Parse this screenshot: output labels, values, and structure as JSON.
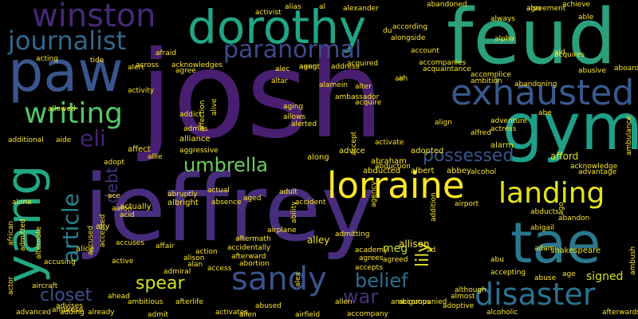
{
  "words": [
    {
      "text": "josh",
      "color": "#481f70"
    },
    {
      "text": "jeffrey",
      "color": "#472d7b"
    },
    {
      "text": "feud",
      "color": "#2ba07c"
    },
    {
      "text": "paw",
      "color": "#3a548c"
    },
    {
      "text": "gym",
      "color": "#1f9e89"
    },
    {
      "text": "dorothy",
      "color": "#21a685"
    },
    {
      "text": "winston",
      "color": "#482878"
    },
    {
      "text": "yang",
      "color": "#22a884"
    },
    {
      "text": "tae",
      "color": "#2a788e"
    },
    {
      "text": "lorraine",
      "color": "#fde725"
    },
    {
      "text": "exhausted",
      "color": "#38598c"
    },
    {
      "text": "landing",
      "color": "#e5e419"
    },
    {
      "text": "sandy",
      "color": "#3b528b"
    },
    {
      "text": "disaster",
      "color": "#2c718e"
    },
    {
      "text": "journalist",
      "color": "#31688e"
    },
    {
      "text": "writing",
      "color": "#54c568"
    },
    {
      "text": "paranormal",
      "color": "#3e4a89"
    },
    {
      "text": "umbrella",
      "color": "#6ccd5a"
    },
    {
      "text": "article",
      "color": "#26828e"
    },
    {
      "text": "eli",
      "color": "#482475"
    },
    {
      "text": "possessed",
      "color": "#39568c"
    },
    {
      "text": "belief",
      "color": "#2d708e"
    },
    {
      "text": "spear",
      "color": "#d2e21b"
    },
    {
      "text": "closet",
      "color": "#3b528b"
    },
    {
      "text": "war",
      "color": "#46317e"
    },
    {
      "text": "lily",
      "color": "#e2e418"
    },
    {
      "text": "meg",
      "color": "#c8e020"
    },
    {
      "text": "allison",
      "color": "#fde725"
    },
    {
      "text": "signed",
      "color": "#d8e219"
    },
    {
      "text": "shakespeare",
      "color": "#e7e419"
    },
    {
      "text": "afford",
      "color": "#e5e419"
    },
    {
      "text": "alarm",
      "color": "#ece51b"
    },
    {
      "text": "debt",
      "color": "#46337f"
    },
    {
      "text": "alley",
      "color": "#f1e51d"
    },
    {
      "text": "alice",
      "color": "#f4e61e"
    },
    {
      "text": "ally",
      "color": "#fde725"
    },
    {
      "text": "albright",
      "color": "#fde725"
    },
    {
      "text": "alliance",
      "color": "#fde725"
    },
    {
      "text": "affect",
      "color": "#fde725"
    },
    {
      "text": "actually",
      "color": "#fde725"
    },
    {
      "text": "adopted",
      "color": "#fde725"
    },
    {
      "text": "advice",
      "color": "#fde725"
    },
    {
      "text": "abraham",
      "color": "#fde725"
    },
    {
      "text": "abducted",
      "color": "#fde725"
    },
    {
      "text": "albert",
      "color": "#fde725"
    },
    {
      "text": "abbey",
      "color": "#fde725"
    },
    {
      "text": "along",
      "color": "#fde725"
    },
    {
      "text": "align",
      "color": "#fde725"
    },
    {
      "text": "alfred",
      "color": "#fde725"
    },
    {
      "text": "adventure",
      "color": "#fde725"
    },
    {
      "text": "actress",
      "color": "#fde725"
    },
    {
      "text": "abe",
      "color": "#fde725"
    },
    {
      "text": "abigail",
      "color": "#fde725"
    },
    {
      "text": "abandon",
      "color": "#fde725"
    },
    {
      "text": "accepting",
      "color": "#fde725"
    },
    {
      "text": "abuse",
      "color": "#fde725"
    },
    {
      "text": "age",
      "color": "#fde725"
    },
    {
      "text": "although",
      "color": "#fde725"
    },
    {
      "text": "accident",
      "color": "#fde725"
    },
    {
      "text": "admitting",
      "color": "#fde725"
    },
    {
      "text": "agreed",
      "color": "#fde725"
    },
    {
      "text": "academy",
      "color": "#fde725"
    },
    {
      "text": "agrees",
      "color": "#fde725"
    },
    {
      "text": "accompanied",
      "color": "#fde725"
    },
    {
      "text": "adoptive",
      "color": "#fde725"
    },
    {
      "text": "accepts",
      "color": "#fde725"
    },
    {
      "text": "almost",
      "color": "#fde725"
    },
    {
      "text": "alcoholic",
      "color": "#fde725"
    },
    {
      "text": "abused",
      "color": "#fde725"
    },
    {
      "text": "allen",
      "color": "#fde725"
    },
    {
      "text": "airfield",
      "color": "#fde725"
    },
    {
      "text": "admiral",
      "color": "#fde725"
    },
    {
      "text": "alan",
      "color": "#fde725"
    },
    {
      "text": "access",
      "color": "#fde725"
    },
    {
      "text": "aftermath",
      "color": "#fde725"
    },
    {
      "text": "accidentally",
      "color": "#fde725"
    },
    {
      "text": "afterward",
      "color": "#fde725"
    },
    {
      "text": "abortion",
      "color": "#fde725"
    },
    {
      "text": "affair",
      "color": "#fde725"
    },
    {
      "text": "action",
      "color": "#fde725"
    },
    {
      "text": "alison",
      "color": "#fde725"
    },
    {
      "text": "active",
      "color": "#fde725"
    },
    {
      "text": "advanced",
      "color": "#fde725"
    },
    {
      "text": "advises",
      "color": "#fde725"
    },
    {
      "text": "already",
      "color": "#fde725"
    },
    {
      "text": "ahead",
      "color": "#fde725"
    },
    {
      "text": "ambitious",
      "color": "#fde725"
    },
    {
      "text": "afterlife",
      "color": "#fde725"
    },
    {
      "text": "admit",
      "color": "#fde725"
    },
    {
      "text": "adding",
      "color": "#fde725"
    },
    {
      "text": "accusing",
      "color": "#fde725"
    },
    {
      "text": "admitted",
      "color": "#fde725"
    },
    {
      "text": "african",
      "color": "#fde725"
    },
    {
      "text": "alone",
      "color": "#fde725"
    },
    {
      "text": "additional",
      "color": "#fde725"
    },
    {
      "text": "acid",
      "color": "#fde725"
    },
    {
      "text": "aaron",
      "color": "#fde725"
    },
    {
      "text": "ace",
      "color": "#fde725"
    },
    {
      "text": "accuses",
      "color": "#fde725"
    },
    {
      "text": "abruptly",
      "color": "#fde725"
    },
    {
      "text": "absence",
      "color": "#fde725"
    },
    {
      "text": "aggressive",
      "color": "#fde725"
    },
    {
      "text": "admits",
      "color": "#fde725"
    },
    {
      "text": "addict",
      "color": "#fde725"
    },
    {
      "text": "allie",
      "color": "#fde725"
    },
    {
      "text": "adopt",
      "color": "#fde725"
    },
    {
      "text": "aide",
      "color": "#fde725"
    },
    {
      "text": "allowed",
      "color": "#fde725"
    },
    {
      "text": "alert",
      "color": "#fde725"
    },
    {
      "text": "acting",
      "color": "#fde725"
    },
    {
      "text": "tide",
      "color": "#fde725"
    },
    {
      "text": "afraid",
      "color": "#fde725"
    },
    {
      "text": "across",
      "color": "#fde725"
    },
    {
      "text": "acknowledges",
      "color": "#fde725"
    },
    {
      "text": "agree",
      "color": "#fde725"
    },
    {
      "text": "altar",
      "color": "#fde725"
    },
    {
      "text": "alec",
      "color": "#fde725"
    },
    {
      "text": "aang",
      "color": "#fde725"
    },
    {
      "text": "agent",
      "color": "#fde725"
    },
    {
      "text": "address",
      "color": "#fde725"
    },
    {
      "text": "acquired",
      "color": "#fde725"
    },
    {
      "text": "alamein",
      "color": "#fde725"
    },
    {
      "text": "alter",
      "color": "#fde725"
    },
    {
      "text": "ambassador",
      "color": "#fde725"
    },
    {
      "text": "acquire",
      "color": "#fde725"
    },
    {
      "text": "aging",
      "color": "#fde725"
    },
    {
      "text": "allows",
      "color": "#fde725"
    },
    {
      "text": "alerted",
      "color": "#fde725"
    },
    {
      "text": "alias",
      "color": "#fde725"
    },
    {
      "text": "al",
      "color": "#fde725"
    },
    {
      "text": "activist",
      "color": "#fde725"
    },
    {
      "text": "alexander",
      "color": "#fde725"
    },
    {
      "text": "du",
      "color": "#fde725"
    },
    {
      "text": "alongside",
      "color": "#fde725"
    },
    {
      "text": "according",
      "color": "#fde725"
    },
    {
      "text": "account",
      "color": "#fde725"
    },
    {
      "text": "accompanies",
      "color": "#fde725"
    },
    {
      "text": "acquaintance",
      "color": "#fde725"
    },
    {
      "text": "abandoned",
      "color": "#fde725"
    },
    {
      "text": "ambition",
      "color": "#fde725"
    },
    {
      "text": "accomplice",
      "color": "#fde725"
    },
    {
      "text": "alpha",
      "color": "#fde725"
    },
    {
      "text": "aid",
      "color": "#fde725"
    },
    {
      "text": "acquires",
      "color": "#fde725"
    },
    {
      "text": "also",
      "color": "#fde725"
    },
    {
      "text": "always",
      "color": "#fde725"
    },
    {
      "text": "agreement",
      "color": "#fde725"
    },
    {
      "text": "achieve",
      "color": "#fde725"
    },
    {
      "text": "able",
      "color": "#fde725"
    },
    {
      "text": "abusive",
      "color": "#fde725"
    },
    {
      "text": "aboard",
      "color": "#fde725"
    },
    {
      "text": "abandoning",
      "color": "#fde725"
    },
    {
      "text": "ambulance",
      "color": "#fde725"
    },
    {
      "text": "acknowledge",
      "color": "#fde725"
    },
    {
      "text": "advantage",
      "color": "#fde725"
    },
    {
      "text": "alcohol",
      "color": "#fde725"
    },
    {
      "text": "abducts",
      "color": "#fde725"
    },
    {
      "text": "ago",
      "color": "#fde725"
    },
    {
      "text": "adam",
      "color": "#fde725"
    },
    {
      "text": "abu",
      "color": "#fde725"
    },
    {
      "text": "ambush",
      "color": "#fde725"
    },
    {
      "text": "afterwards",
      "color": "#fde725"
    },
    {
      "text": "aircraft",
      "color": "#fde725"
    },
    {
      "text": "ambrose",
      "color": "#fde725"
    },
    {
      "text": "allen",
      "color": "#fde725"
    },
    {
      "text": "actor",
      "color": "#fde725"
    },
    {
      "text": "alternate",
      "color": "#fde725"
    },
    {
      "text": "activity",
      "color": "#fde725"
    },
    {
      "text": "activate",
      "color": "#fde725"
    },
    {
      "text": "affection",
      "color": "#fde725"
    },
    {
      "text": "abduction",
      "color": "#fde725"
    },
    {
      "text": "accept",
      "color": "#fde725"
    },
    {
      "text": "addition",
      "color": "#fde725"
    },
    {
      "text": "airport",
      "color": "#fde725"
    },
    {
      "text": "adult",
      "color": "#fde725"
    },
    {
      "text": "agency",
      "color": "#fde725"
    },
    {
      "text": "ability",
      "color": "#fde725"
    },
    {
      "text": "alex",
      "color": "#fde725"
    },
    {
      "text": "airplane",
      "color": "#fde725"
    },
    {
      "text": "actual",
      "color": "#fde725"
    },
    {
      "text": "aged",
      "color": "#fde725"
    },
    {
      "text": "alive",
      "color": "#fde725"
    },
    {
      "text": "ad",
      "color": "#fde725"
    },
    {
      "text": "ah",
      "color": "#fde725"
    },
    {
      "text": "air",
      "color": "#fde725"
    },
    {
      "text": "activates",
      "color": "#fde725"
    },
    {
      "text": "accompany",
      "color": "#fde725"
    },
    {
      "text": "ambiguous",
      "color": "#fde725"
    },
    {
      "text": "accepted",
      "color": "#fde725"
    },
    {
      "text": "accused",
      "color": "#fde725"
    },
    {
      "text": "agreeing",
      "color": "#fde725"
    }
  ]
}
